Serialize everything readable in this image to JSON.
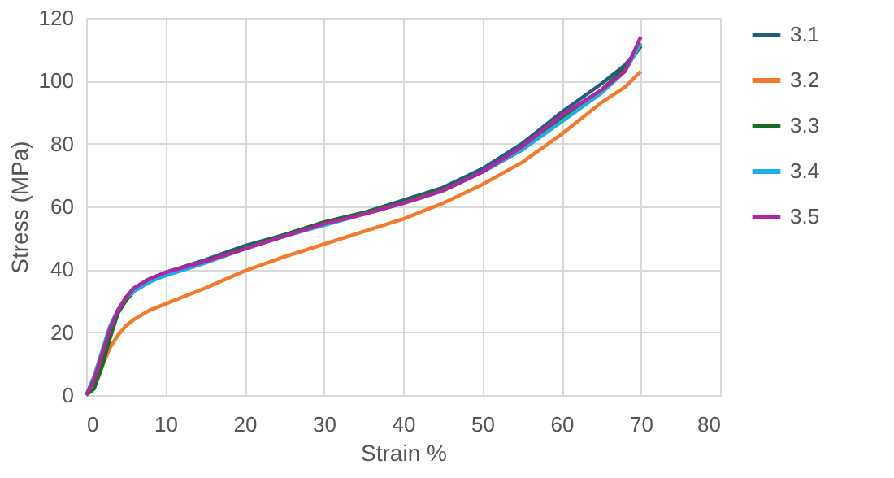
{
  "chart_data": {
    "type": "line",
    "xlabel": "Strain %",
    "ylabel": "Stress (MPa)",
    "x": [
      0,
      1,
      2,
      3,
      4,
      5,
      6,
      8,
      10,
      15,
      20,
      25,
      30,
      35,
      40,
      45,
      50,
      55,
      60,
      65,
      68,
      70
    ],
    "series": [
      {
        "name": "3.1",
        "color": "#1f5f84",
        "values": [
          0,
          4,
          12,
          21,
          27,
          31,
          34,
          37,
          39,
          43,
          47.5,
          51,
          55,
          58,
          62,
          66,
          72,
          80,
          90,
          99,
          105,
          111
        ]
      },
      {
        "name": "3.2",
        "color": "#f4792b",
        "values": [
          0,
          3,
          9,
          15,
          19,
          22,
          24,
          27,
          29,
          34,
          39.5,
          44,
          48,
          52,
          56,
          61,
          67,
          74,
          83,
          93,
          98,
          103
        ]
      },
      {
        "name": "3.3",
        "color": "#17701f",
        "values": [
          0,
          2,
          9,
          18,
          26,
          30,
          33,
          36,
          38.5,
          42.5,
          47,
          51,
          55,
          58,
          61.5,
          65.5,
          71,
          78,
          88,
          97,
          104,
          111
        ]
      },
      {
        "name": "3.4",
        "color": "#1aaee8",
        "values": [
          0,
          6,
          14,
          22,
          27,
          31,
          33,
          36,
          38,
          42,
          46.5,
          50.5,
          54,
          57.5,
          61,
          65,
          71,
          78,
          87,
          96,
          103,
          112
        ]
      },
      {
        "name": "3.5",
        "color": "#b2259e",
        "values": [
          0,
          5,
          13,
          21,
          27,
          31,
          34,
          37,
          39,
          42.5,
          46.5,
          50.5,
          54.5,
          57.5,
          61,
          65,
          71,
          79,
          89,
          97,
          103,
          114
        ]
      }
    ],
    "xlim": [
      0,
      80
    ],
    "xticks": [
      0,
      10,
      20,
      30,
      40,
      50,
      60,
      70,
      80
    ],
    "ylim": [
      0,
      120
    ],
    "yticks": [
      0,
      20,
      40,
      60,
      80,
      100,
      120
    ],
    "grid": true,
    "legend": "right",
    "marker": "none",
    "line_style": "solid"
  }
}
